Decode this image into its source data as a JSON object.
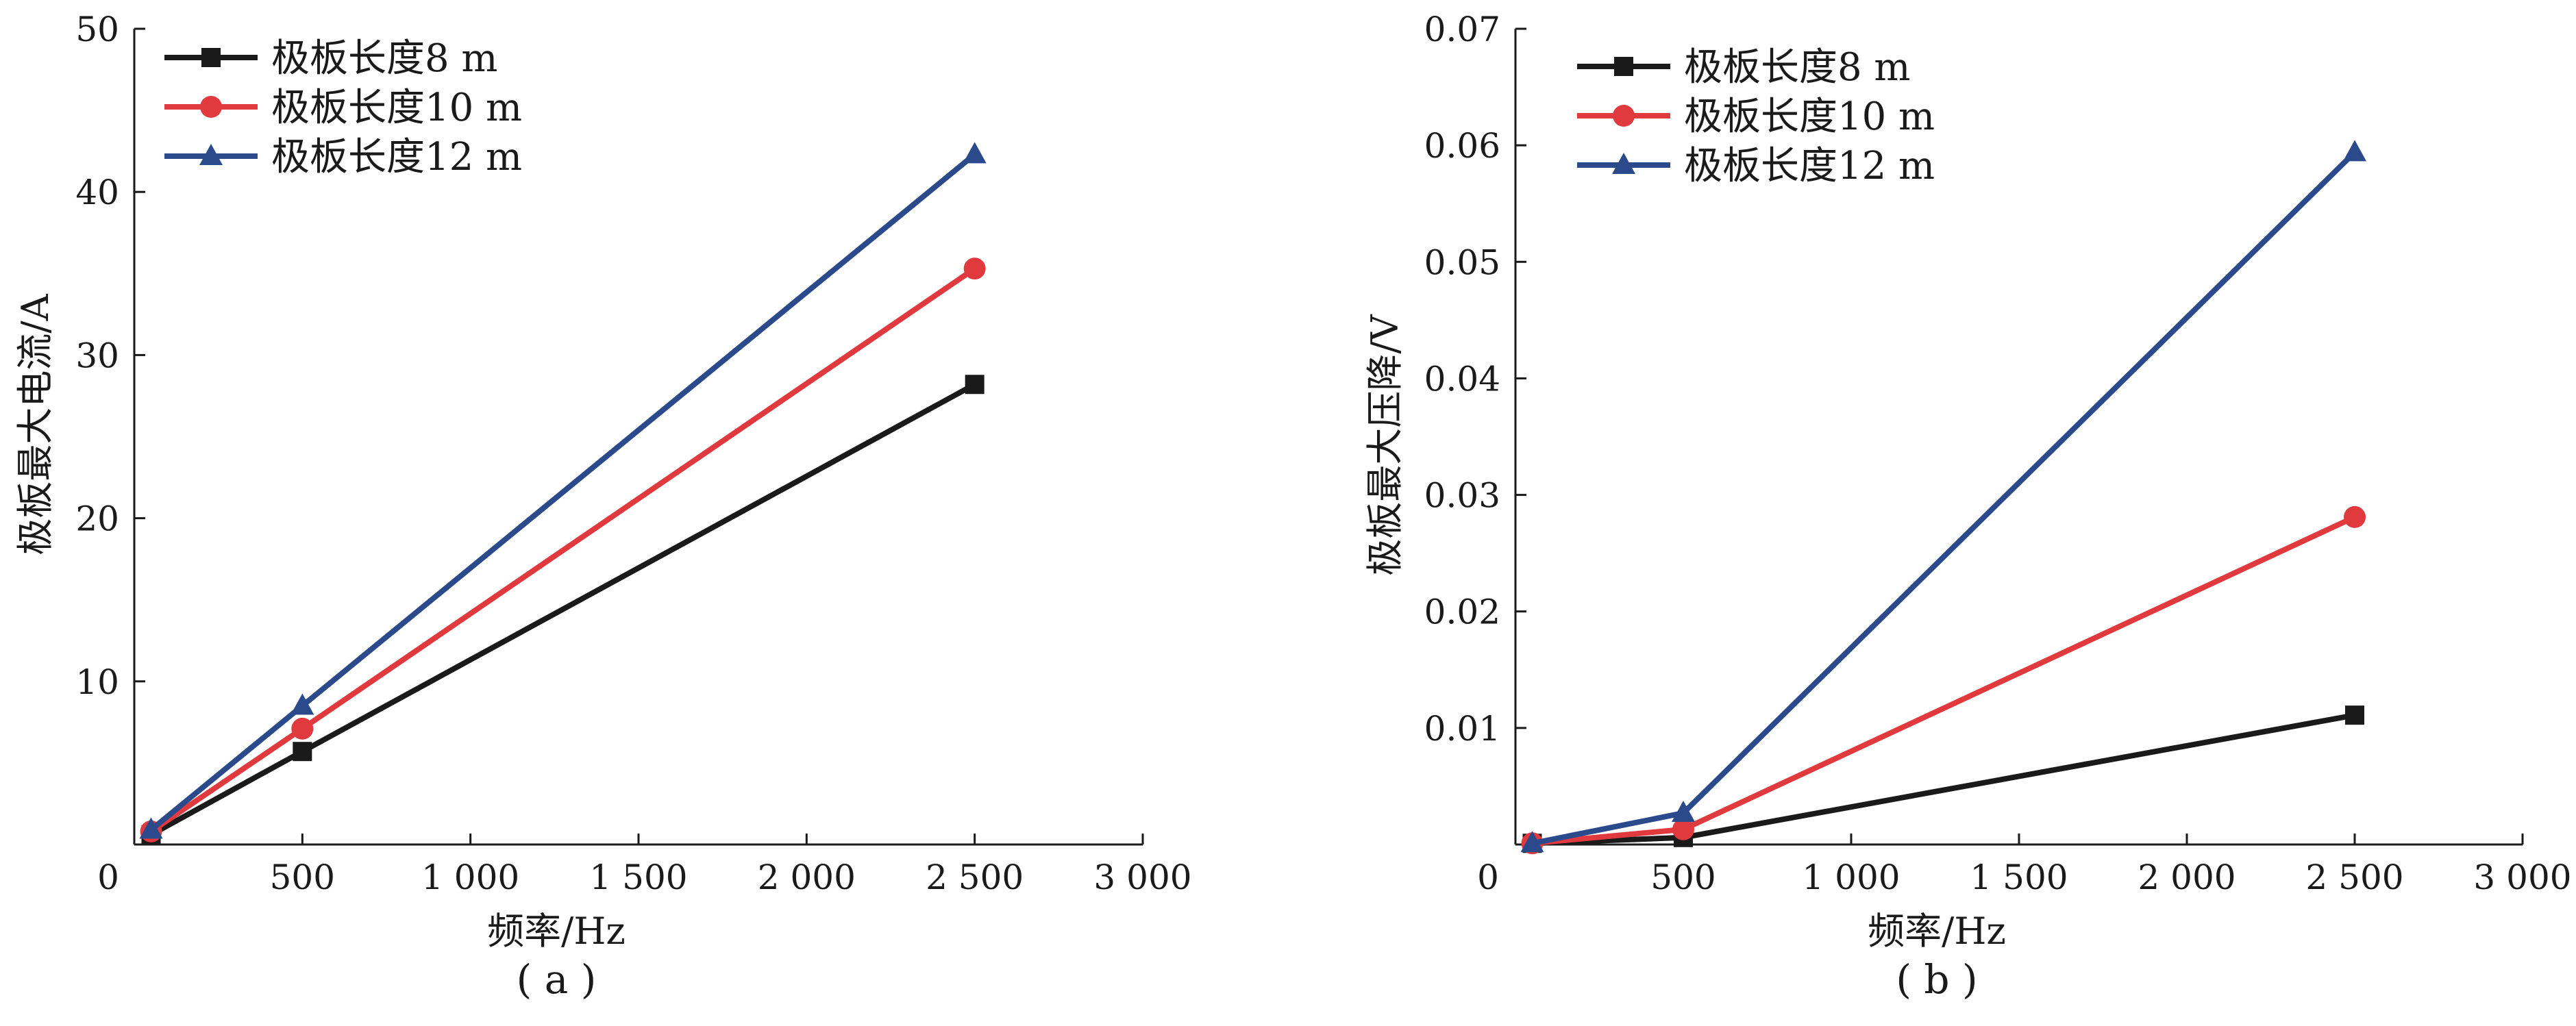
{
  "chart_data": [
    {
      "type": "line",
      "panel_label": "( a )",
      "xlabel": "频率/Hz",
      "ylabel": "极板最大电流/A",
      "xlim": [
        0,
        3000
      ],
      "ylim": [
        0,
        50
      ],
      "xticks": [
        0,
        500,
        1000,
        1500,
        2000,
        2500,
        3000
      ],
      "xtick_labels": [
        "0",
        "500",
        "1 000",
        "1 500",
        "2 000",
        "2 500",
        "3 000"
      ],
      "yticks": [
        10,
        20,
        30,
        40,
        50
      ],
      "ytick_labels": [
        "10",
        "20",
        "30",
        "40",
        "50"
      ],
      "legend_position": "top-left",
      "grid": false,
      "series": [
        {
          "name": "极板长度8 m",
          "color": "#1a1a1a",
          "marker": "square",
          "x": [
            50,
            500,
            2500
          ],
          "y": [
            0.6,
            5.7,
            28.2
          ]
        },
        {
          "name": "极板长度10 m",
          "color": "#e03a3e",
          "marker": "circle",
          "x": [
            50,
            500,
            2500
          ],
          "y": [
            0.8,
            7.1,
            35.3
          ]
        },
        {
          "name": "极板长度12 m",
          "color": "#2a4a8c",
          "marker": "triangle",
          "x": [
            50,
            500,
            2500
          ],
          "y": [
            0.9,
            8.5,
            42.3
          ]
        }
      ]
    },
    {
      "type": "line",
      "panel_label": "( b )",
      "xlabel": "频率/Hz",
      "ylabel": "极板最大压降/V",
      "xlim": [
        0,
        3000
      ],
      "ylim": [
        0,
        0.07
      ],
      "xticks": [
        0,
        500,
        1000,
        1500,
        2000,
        2500,
        3000
      ],
      "xtick_labels": [
        "0",
        "500",
        "1 000",
        "1 500",
        "2 000",
        "2 500",
        "3 000"
      ],
      "yticks": [
        0.01,
        0.02,
        0.03,
        0.04,
        0.05,
        0.06,
        0.07
      ],
      "ytick_labels": [
        "0.01",
        "0.02",
        "0.03",
        "0.04",
        "0.05",
        "0.06",
        "0.07"
      ],
      "legend_position": "top-left",
      "grid": false,
      "series": [
        {
          "name": "极板长度8 m",
          "color": "#1a1a1a",
          "marker": "square",
          "x": [
            50,
            500,
            2500
          ],
          "y": [
            0.0001,
            0.0006,
            0.0111
          ]
        },
        {
          "name": "极板长度10 m",
          "color": "#e03a3e",
          "marker": "circle",
          "x": [
            50,
            500,
            2500
          ],
          "y": [
            0.0001,
            0.0013,
            0.0281
          ]
        },
        {
          "name": "极板长度12 m",
          "color": "#2a4a8c",
          "marker": "triangle",
          "x": [
            50,
            500,
            2500
          ],
          "y": [
            0.0001,
            0.0027,
            0.0594
          ]
        }
      ]
    }
  ]
}
